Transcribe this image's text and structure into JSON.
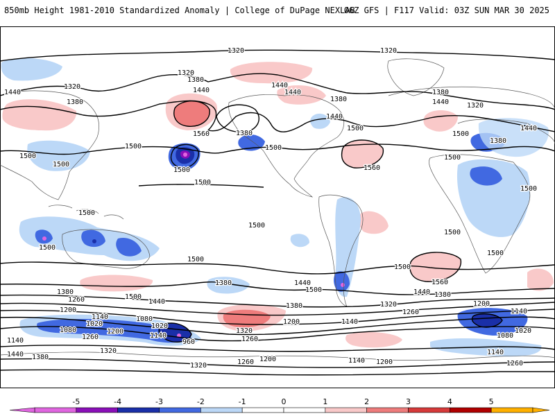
{
  "header": {
    "left_title": "850mb Height 1981-2010 Standardized Anomaly | College of DuPage NEXLAB",
    "right_title": "06Z GFS | F117 Valid: 03Z SUN MAR 30 2025"
  },
  "colors": {
    "neg5": "#e066e0",
    "neg4": "#8a0fb8",
    "neg3": "#1a2fa8",
    "neg2": "#4169e1",
    "neg1": "#bcd8f7",
    "pos1": "#f9c9c9",
    "pos2": "#ee7c7c",
    "pos3": "#d63a3a",
    "pos4": "#b00000",
    "pos5": "#ffb000",
    "contour": "#000000"
  },
  "contour_labels": [
    {
      "text": "1320",
      "pos": [
        340,
        38
      ]
    },
    {
      "text": "1320",
      "pos": [
        560,
        38
      ]
    },
    {
      "text": "1320",
      "pos": [
        268,
        70
      ]
    },
    {
      "text": "1380",
      "pos": [
        282,
        80
      ]
    },
    {
      "text": "1320",
      "pos": [
        104,
        90
      ]
    },
    {
      "text": "1440",
      "pos": [
        18,
        98
      ]
    },
    {
      "text": "1380",
      "pos": [
        108,
        112
      ]
    },
    {
      "text": "1440",
      "pos": [
        290,
        95
      ]
    },
    {
      "text": "1440",
      "pos": [
        403,
        88
      ]
    },
    {
      "text": "1440",
      "pos": [
        422,
        98
      ]
    },
    {
      "text": "1380",
      "pos": [
        488,
        108
      ]
    },
    {
      "text": "1380",
      "pos": [
        635,
        98
      ]
    },
    {
      "text": "1440",
      "pos": [
        635,
        112
      ]
    },
    {
      "text": "1320",
      "pos": [
        685,
        117
      ]
    },
    {
      "text": "1560",
      "pos": [
        290,
        158
      ]
    },
    {
      "text": "1380",
      "pos": [
        352,
        157
      ]
    },
    {
      "text": "1500",
      "pos": [
        394,
        178
      ]
    },
    {
      "text": "1440",
      "pos": [
        482,
        133
      ]
    },
    {
      "text": "1500",
      "pos": [
        512,
        150
      ]
    },
    {
      "text": "1440",
      "pos": [
        762,
        150
      ]
    },
    {
      "text": "1500",
      "pos": [
        664,
        158
      ]
    },
    {
      "text": "1380",
      "pos": [
        718,
        168
      ]
    },
    {
      "text": "1500",
      "pos": [
        192,
        176
      ]
    },
    {
      "text": "1500",
      "pos": [
        40,
        190
      ]
    },
    {
      "text": "1500",
      "pos": [
        88,
        202
      ]
    },
    {
      "text": "1500",
      "pos": [
        262,
        210
      ]
    },
    {
      "text": "1560",
      "pos": [
        536,
        207
      ]
    },
    {
      "text": "1500",
      "pos": [
        652,
        192
      ]
    },
    {
      "text": "1500",
      "pos": [
        292,
        228
      ]
    },
    {
      "text": "1500",
      "pos": [
        762,
        237
      ]
    },
    {
      "text": "1500",
      "pos": [
        125,
        272
      ]
    },
    {
      "text": "1500",
      "pos": [
        370,
        290
      ]
    },
    {
      "text": "1500",
      "pos": [
        652,
        300
      ]
    },
    {
      "text": "1500",
      "pos": [
        68,
        322
      ]
    },
    {
      "text": "1500",
      "pos": [
        714,
        330
      ]
    },
    {
      "text": "1500",
      "pos": [
        282,
        339
      ]
    },
    {
      "text": "1500",
      "pos": [
        580,
        350
      ]
    },
    {
      "text": "1560",
      "pos": [
        634,
        372
      ]
    },
    {
      "text": "1380",
      "pos": [
        322,
        373
      ]
    },
    {
      "text": "1440",
      "pos": [
        436,
        373
      ]
    },
    {
      "text": "1500",
      "pos": [
        452,
        383
      ]
    },
    {
      "text": "1440",
      "pos": [
        608,
        386
      ]
    },
    {
      "text": "1380",
      "pos": [
        638,
        390
      ]
    },
    {
      "text": "1380",
      "pos": [
        94,
        386
      ]
    },
    {
      "text": "1260",
      "pos": [
        110,
        397
      ]
    },
    {
      "text": "1500",
      "pos": [
        192,
        393
      ]
    },
    {
      "text": "1440",
      "pos": [
        226,
        400
      ]
    },
    {
      "text": "1380",
      "pos": [
        424,
        406
      ]
    },
    {
      "text": "1320",
      "pos": [
        560,
        404
      ]
    },
    {
      "text": "1200",
      "pos": [
        694,
        403
      ]
    },
    {
      "text": "1260",
      "pos": [
        592,
        415
      ]
    },
    {
      "text": "1140",
      "pos": [
        748,
        414
      ]
    },
    {
      "text": "1200",
      "pos": [
        98,
        412
      ]
    },
    {
      "text": "1140",
      "pos": [
        144,
        422
      ]
    },
    {
      "text": "1080",
      "pos": [
        208,
        425
      ]
    },
    {
      "text": "1200",
      "pos": [
        420,
        429
      ]
    },
    {
      "text": "1140",
      "pos": [
        504,
        429
      ]
    },
    {
      "text": "1020",
      "pos": [
        136,
        432
      ]
    },
    {
      "text": "1020",
      "pos": [
        230,
        435
      ]
    },
    {
      "text": "1080",
      "pos": [
        98,
        441
      ]
    },
    {
      "text": "1200",
      "pos": [
        166,
        443
      ]
    },
    {
      "text": "1140",
      "pos": [
        228,
        449
      ]
    },
    {
      "text": "1320",
      "pos": [
        352,
        442
      ]
    },
    {
      "text": "1260",
      "pos": [
        130,
        451
      ]
    },
    {
      "text": "1260",
      "pos": [
        360,
        454
      ]
    },
    {
      "text": "960",
      "pos": [
        272,
        458
      ]
    },
    {
      "text": "1020",
      "pos": [
        754,
        442
      ]
    },
    {
      "text": "1080",
      "pos": [
        728,
        449
      ]
    },
    {
      "text": "1140",
      "pos": [
        22,
        456
      ]
    },
    {
      "text": "1320",
      "pos": [
        156,
        471
      ]
    },
    {
      "text": "1440",
      "pos": [
        22,
        476
      ]
    },
    {
      "text": "1380",
      "pos": [
        58,
        480
      ]
    },
    {
      "text": "1140",
      "pos": [
        714,
        473
      ]
    },
    {
      "text": "1200",
      "pos": [
        386,
        483
      ]
    },
    {
      "text": "1260",
      "pos": [
        354,
        487
      ]
    },
    {
      "text": "1140",
      "pos": [
        514,
        485
      ]
    },
    {
      "text": "1200",
      "pos": [
        554,
        487
      ]
    },
    {
      "text": "1260",
      "pos": [
        742,
        489
      ]
    },
    {
      "text": "1320",
      "pos": [
        286,
        492
      ]
    }
  ],
  "colorbar": {
    "ticks": [
      "-5",
      "-4",
      "-3",
      "-2",
      "-1",
      "0",
      "1",
      "2",
      "3",
      "4",
      "5"
    ]
  }
}
